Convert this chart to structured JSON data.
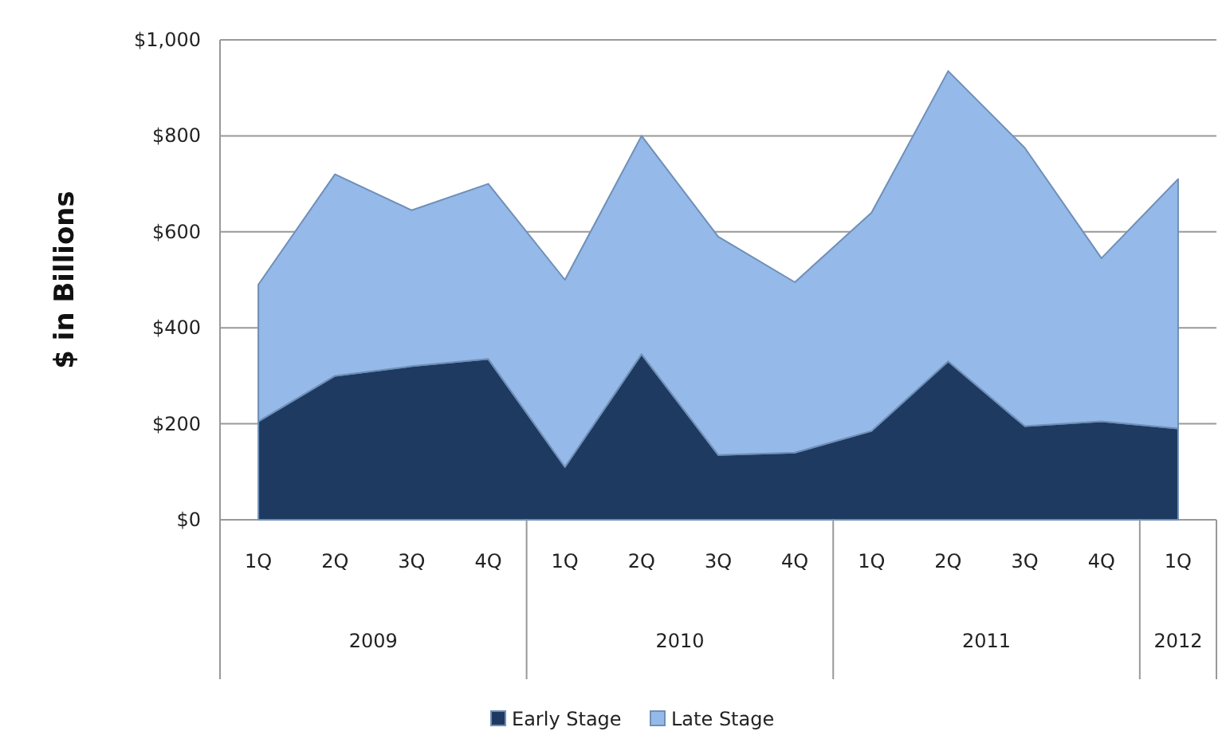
{
  "chart_data": {
    "type": "area",
    "stacked": true,
    "ylabel": "$ in Billions",
    "categories": [
      "1Q",
      "2Q",
      "3Q",
      "4Q",
      "1Q",
      "2Q",
      "3Q",
      "4Q",
      "1Q",
      "2Q",
      "3Q",
      "4Q",
      "1Q"
    ],
    "annotations": [
      "2009",
      "2010",
      "2011",
      "2012"
    ],
    "series": [
      {
        "name": "Early Stage",
        "color": "#1f3a60",
        "values": [
          205,
          300,
          320,
          335,
          110,
          345,
          135,
          140,
          185,
          330,
          195,
          205,
          190
        ]
      },
      {
        "name": "Late Stage",
        "color": "#95b9e8",
        "values": [
          285,
          420,
          325,
          365,
          390,
          455,
          455,
          355,
          455,
          605,
          580,
          340,
          520
        ]
      }
    ],
    "ylim": [
      0,
      1000
    ],
    "yticks": [
      {
        "value": 0,
        "label": "$0"
      },
      {
        "value": 200,
        "label": "$200"
      },
      {
        "value": 400,
        "label": "$400"
      },
      {
        "value": 600,
        "label": "$600"
      },
      {
        "value": 800,
        "label": "$800"
      },
      {
        "value": 1000,
        "label": "$1,000"
      }
    ],
    "grid": "y",
    "legend": "bottom"
  }
}
